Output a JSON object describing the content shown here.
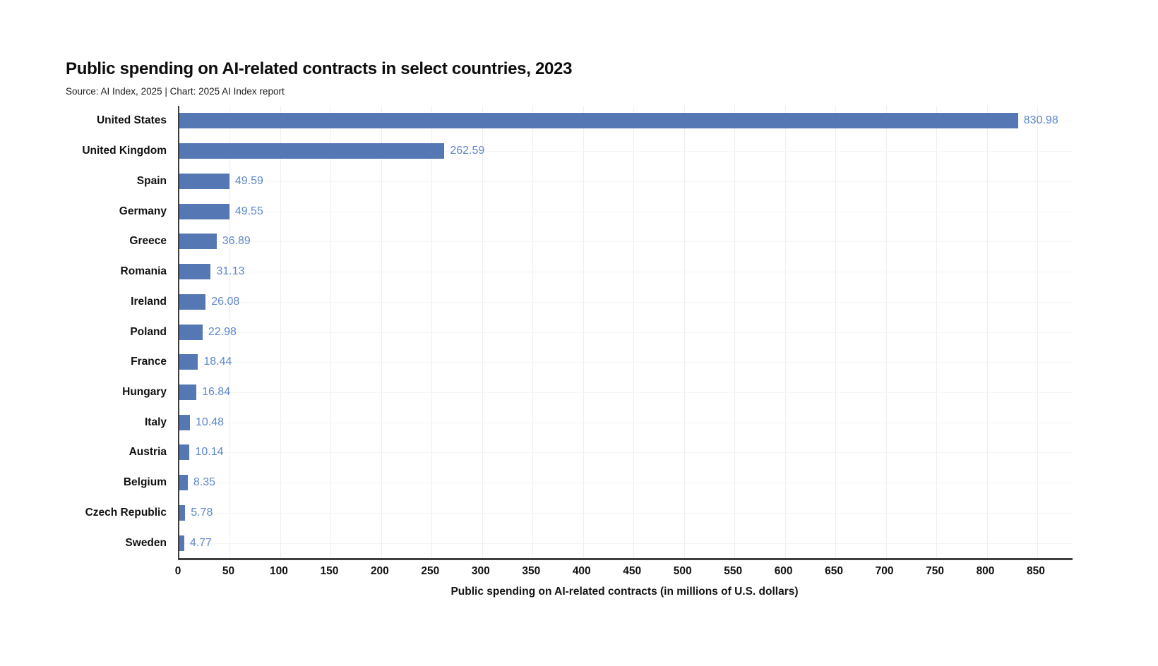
{
  "page": {
    "background": "#ffffff"
  },
  "header": {
    "title": "Public spending on AI-related contracts in select countries, 2023",
    "subtitle": "Source: AI Index, 2025 | Chart: 2025 AI Index report"
  },
  "chart_data": {
    "type": "bar",
    "orientation": "horizontal",
    "title": "Public spending on AI-related contracts in select countries, 2023",
    "source": "Source: AI Index, 2025 | Chart: 2025 AI Index report",
    "xlabel": "Public spending on AI-related contracts (in millions of U.S. dollars)",
    "ylabel": "",
    "categories": [
      "United States",
      "United Kingdom",
      "Spain",
      "Germany",
      "Greece",
      "Romania",
      "Ireland",
      "Poland",
      "France",
      "Hungary",
      "Italy",
      "Austria",
      "Belgium",
      "Czech Republic",
      "Sweden"
    ],
    "values": [
      830.98,
      262.59,
      49.59,
      49.55,
      36.89,
      31.13,
      26.08,
      22.98,
      18.44,
      16.84,
      10.48,
      10.14,
      8.35,
      5.78,
      4.77
    ],
    "value_labels": [
      "830.98",
      "262.59",
      "49.59",
      "49.55",
      "36.89",
      "31.13",
      "26.08",
      "22.98",
      "18.44",
      "16.84",
      "10.48",
      "10.14",
      "8.35",
      "5.78",
      "4.77"
    ],
    "xticks": [
      0,
      50,
      100,
      150,
      200,
      250,
      300,
      350,
      400,
      450,
      500,
      550,
      600,
      650,
      700,
      750,
      800,
      850
    ],
    "xlim": [
      0,
      885
    ],
    "grid": "faint vertical gridlines at each x tick, faint horizontal gridlines at each row center",
    "legend": "none",
    "colors": {
      "bar": "#5577b4",
      "value_label": "#5e87c9",
      "axis": "#3e3e3e",
      "gridline_vertical": "#efefef",
      "gridline_horizontal": "#f5f5f5",
      "text": "#111111"
    }
  }
}
